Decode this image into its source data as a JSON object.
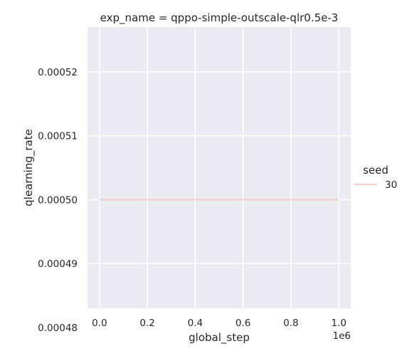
{
  "chart_data": {
    "type": "line",
    "title": "exp_name = qppo-simple-outscale-qlr0.5e-3",
    "xlabel": "global_step",
    "ylabel": "qlearning_rate",
    "x_offset_label": "1e6",
    "xlim": [
      -0.05,
      1.05
    ],
    "ylim": [
      0.000483,
      0.000527
    ],
    "x_ticks": [
      0.0,
      0.2,
      0.4,
      0.6,
      0.8,
      1.0
    ],
    "x_tick_labels": [
      "0.0",
      "0.2",
      "0.4",
      "0.6",
      "0.8",
      "1.0"
    ],
    "y_ticks": [
      0.00048,
      0.00049,
      0.0005,
      0.00051,
      0.00052
    ],
    "y_tick_labels": [
      "0.00048",
      "0.00049",
      "0.00050",
      "0.00051",
      "0.00052"
    ],
    "grid": true,
    "legend": {
      "title": "seed",
      "placement": "right"
    },
    "series": [
      {
        "name": "30",
        "color": "#f2cec4",
        "x": [
          0.0,
          1.0
        ],
        "y": [
          0.0005,
          0.0005
        ]
      }
    ],
    "colors": {
      "plot_background": "#eaeaf2",
      "grid": "#ffffff",
      "text": "#262626"
    }
  }
}
